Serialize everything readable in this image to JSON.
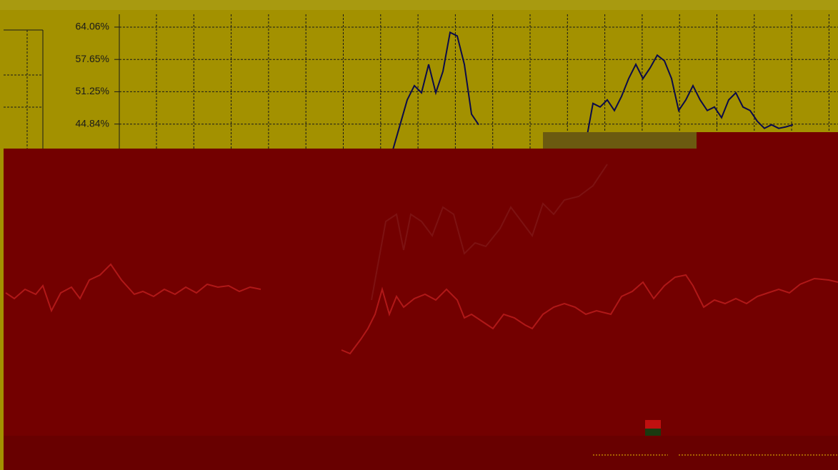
{
  "chart_data": {
    "type": "line",
    "categories": [
      null,
      null,
      null,
      null,
      null,
      null,
      null,
      null,
      null,
      null,
      null,
      null,
      null,
      null,
      null,
      null,
      null,
      null,
      null,
      null,
      null,
      null,
      null,
      null,
      null,
      null,
      null,
      null,
      null,
      null,
      null,
      null,
      null,
      null,
      null,
      null,
      null,
      null,
      null,
      null,
      null,
      null,
      null,
      null,
      null,
      null,
      null,
      null,
      null,
      null,
      null,
      null,
      null,
      null,
      null,
      null,
      null
    ],
    "series": [
      {
        "color": "#0a0a4a",
        "values": [
          39.77,
          44.7,
          49.63,
          52.45,
          51.04,
          56.67,
          51.04,
          55.27,
          63.01,
          62.31,
          56.67,
          46.81,
          44.7,
          null,
          null,
          null,
          null,
          null,
          null,
          null,
          null,
          null,
          null,
          null,
          null,
          null,
          null,
          41.18,
          48.93,
          48.22,
          49.63,
          47.52,
          50.33,
          53.86,
          56.67,
          53.86,
          55.97,
          58.49,
          57.38,
          53.86,
          47.52,
          49.63,
          52.45,
          49.63,
          47.52,
          48.22,
          46.11,
          49.63,
          51.04,
          48.22,
          47.52,
          45.4,
          43.99,
          44.7,
          43.99,
          44.28,
          44.7
        ]
      }
    ],
    "ylim": [
      38,
      66.6
    ],
    "yticks": [
      {
        "value": 64.06,
        "label": "64.06%"
      },
      {
        "value": 57.65,
        "label": "57.65%"
      },
      {
        "value": 51.25,
        "label": "51.25%"
      },
      {
        "value": 44.84,
        "label": "44.84%"
      }
    ],
    "grid": true
  }
}
